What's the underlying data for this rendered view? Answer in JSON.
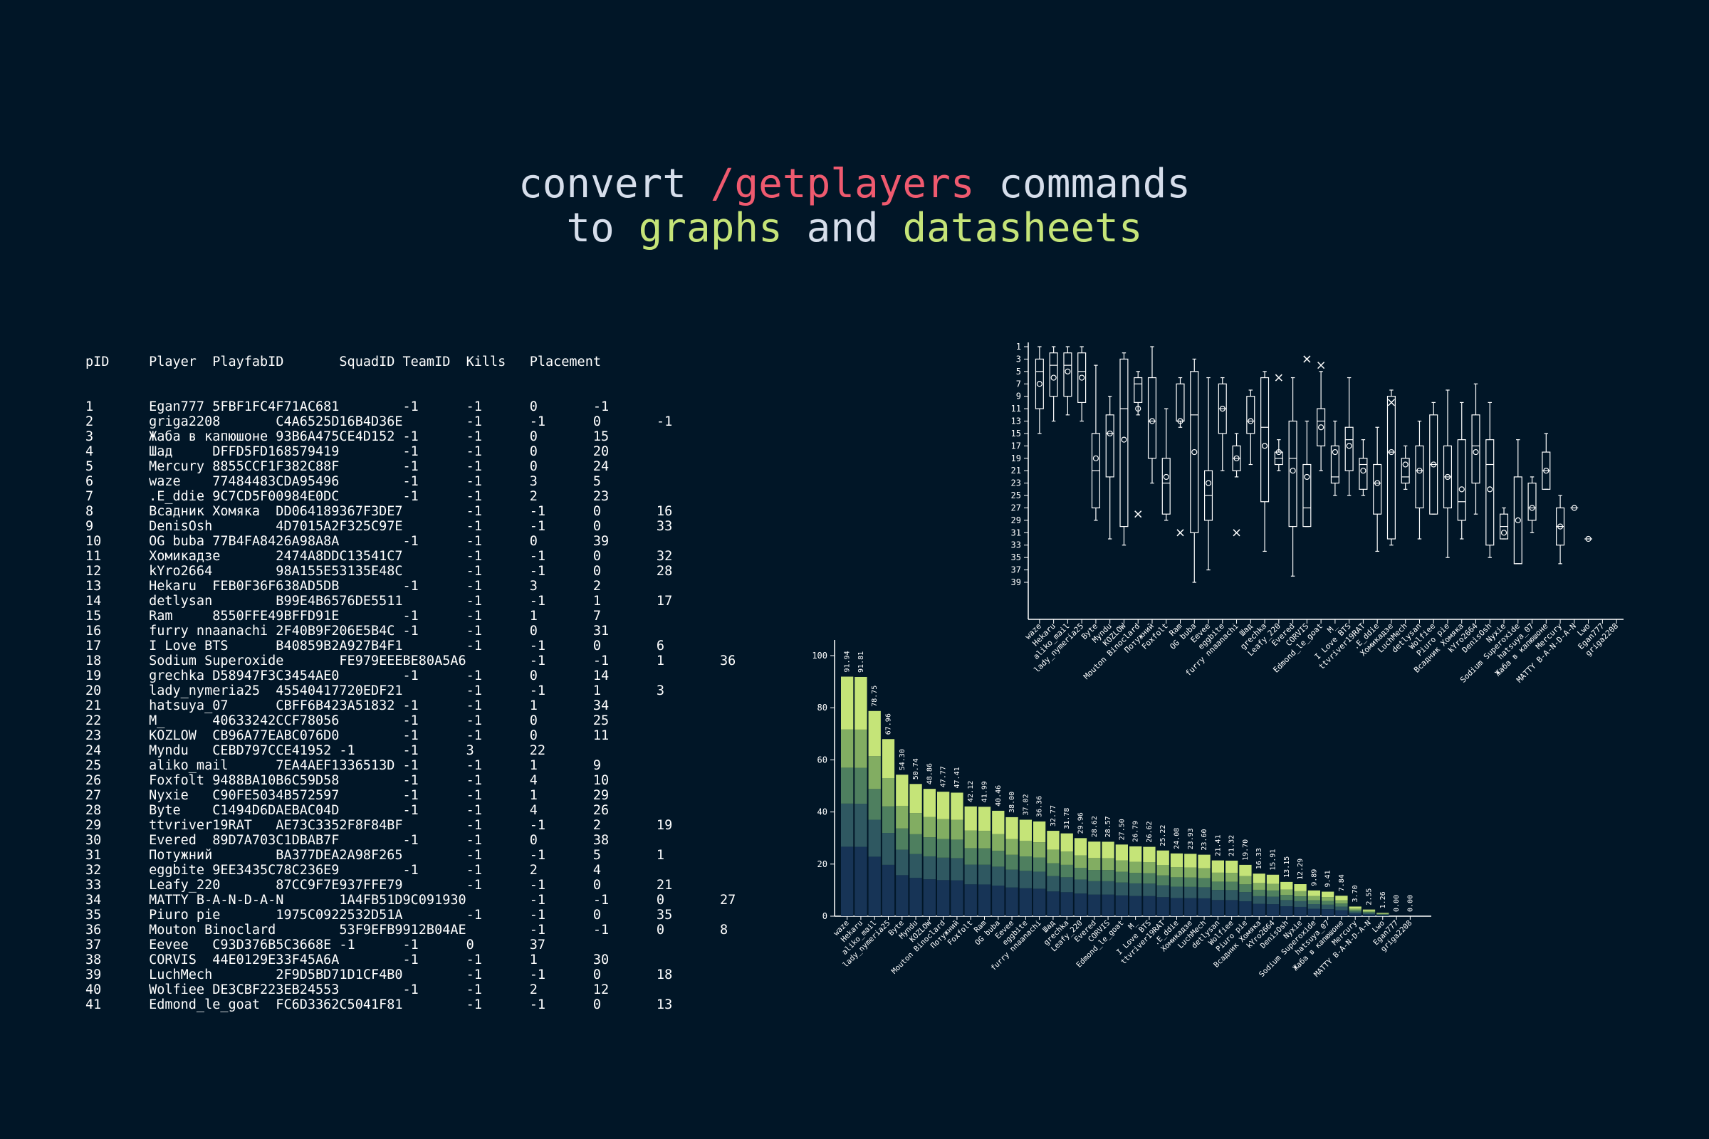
{
  "headline": {
    "line1_a": "convert ",
    "line1_b": "/getplayers",
    "line1_c": " commands",
    "line2_a": "to ",
    "line2_b": "graphs",
    "line2_c": " and ",
    "line2_d": "datasheets"
  },
  "colors": {
    "background": "#011627",
    "text": "#d6deeb",
    "command_red": "#ef5a6f",
    "green": "#c5e478",
    "box_stroke": "#ffffff",
    "bar_layers": [
      "#173456",
      "#2f5861",
      "#4e7f5f",
      "#82ad62",
      "#c5e478"
    ]
  },
  "datasheet": {
    "header": "pID     Player  PlayfabID       SquadID TeamID  Kills   Placement",
    "rows": [
      "1       Egan777 5FBF1FC4F71AC681        -1      -1      0       -1",
      "2       griga2208       C4A6525D16B4D36E        -1      -1      0       -1",
      "3       Жаба в капюшоне 93B6A475CE4D152 -1      -1      0       15",
      "4       Шад     DFFD5FD168579419        -1      -1      0       20",
      "5       Mercury 8855CCF1F382C88F        -1      -1      0       24",
      "6       waze    77484483CDA95496        -1      -1      3       5",
      "7       .E_ddie 9C7CD5F00984E0DC        -1      -1      2       23",
      "8       Всадник Хомяка  DD064189367F3DE7        -1      -1      0       16",
      "9       DenisOsh        4D7015A2F325C97E        -1      -1      0       33",
      "10      OG buba 77B4FA8426A98A8A        -1      -1      0       39",
      "11      Хомикадзе       2474A8DDC13541C7        -1      -1      0       32",
      "12      kYro2664        98A155E53135E48C        -1      -1      0       28",
      "13      Hekaru  FEB0F36F638AD5DB        -1      -1      3       2",
      "14      detlysan        B99E4B6576DE5511        -1      -1      1       17",
      "15      Ram     8550FFE49BFFD91E        -1      -1      1       7",
      "16      furry nnaanachi 2F40B9F206E5B4C -1      -1      0       31",
      "17      I Love BTS      B40859B2A927B4F1        -1      -1      0       6",
      "18      Sodium Superoxide       FE979EEEBE80A5A6        -1      -1      1       36",
      "19      grechka D58947F3C3454AE0        -1      -1      0       14",
      "20      lady_nymeria25  45540417720EDF21        -1      -1      1       3",
      "21      hatsuya_07      CBFF6B423A51832 -1      -1      1       34",
      "22      M_      40633242CCF78056        -1      -1      0       25",
      "23      KOZLOW  CB96A77EABC076D0        -1      -1      0       11",
      "24      Myndu   CEBD797CCE41952 -1      -1      3       22",
      "25      aliko_mail      7EA4AEF1336513D -1      -1      1       9",
      "26      Foxfolt 9488BA10B6C59D58        -1      -1      4       10",
      "27      Nyxie   C90FE5034B572597        -1      -1      1       29",
      "28      Byte    C1494D6DAEBAC04D        -1      -1      4       26",
      "29      ttvriver19RAT   AE73C3352F8F84BF        -1      -1      2       19",
      "30      Evered  89D7A703C1DBAB7F        -1      -1      0       38",
      "31      Потужний        BA377DEA2A98F265        -1      -1      5       1",
      "32      eggbite 9EE3435C78C236E9        -1      -1      2       4",
      "33      Leafy_220       87CC9F7E937FFE79        -1      -1      0       21",
      "34      MATTY B-A-N-D-A-N       1A4FB51D9C091930        -1      -1      0       27",
      "35      Piuro pie       1975C0922532D51A        -1      -1      0       35",
      "36      Mouton Binoclard        53F9EFB9912B04AE        -1      -1      0       8",
      "37      Eevee   C93D376B5C3668E -1      -1      0       37",
      "38      CORVIS  44E0129E33F45A6A        -1      -1      1       30",
      "39      LuchMech        2F9D5BD71D1CF4B0        -1      -1      0       18",
      "40      Wolfiee DE3CBF223EB24553        -1      -1      2       12",
      "41      Edmond_le_goat  FC6D3362C5041F81        -1      -1      0       13"
    ]
  },
  "chart_data": [
    {
      "type": "box",
      "y_axis_inverted": true,
      "y_ticks": [
        1,
        3,
        5,
        7,
        9,
        11,
        13,
        15,
        17,
        19,
        21,
        23,
        25,
        27,
        29,
        31,
        33,
        35,
        37,
        39
      ],
      "ylim": [
        1,
        40
      ],
      "grid": false,
      "categories": [
        "waze",
        "Hekaru",
        "aliko_mail",
        "lady_nymeria25",
        "Byte",
        "Myndu",
        "KOZLOW",
        "Mouton Binoclard",
        "Потужний",
        "Foxfolt",
        "Ram",
        "OG buba",
        "Eevee",
        "eggbite",
        "furry nnaanachi",
        "Шад",
        "grechka",
        "Leafy_220",
        "Evered",
        "CORVIS",
        "Edmond_le_goat",
        "M_",
        "I Love BTS",
        "ttvriver19RAT",
        ".E_ddie",
        "Хомикадзе",
        "LuchMech",
        "detlysan",
        "Wolfiee",
        "Piuro pie",
        "Всадник Хомяка",
        "kYro2664",
        "DenisOsh",
        "Nyxie",
        "Sodium Superoxide",
        "hatsuya_07",
        "Жаба в капюшоне",
        "Mercury",
        "MATTY B-A-N-D-A-N",
        "Lwo",
        "Egan777",
        "griga2208"
      ],
      "boxes": [
        {
          "min": 1,
          "q1": 3,
          "med": 5,
          "q3": 11,
          "max": 15,
          "mean": 7
        },
        {
          "min": 1,
          "q1": 2,
          "med": 4,
          "q3": 9,
          "max": 13,
          "mean": 6
        },
        {
          "min": 1,
          "q1": 2,
          "med": 4,
          "q3": 9,
          "max": 12,
          "mean": 5
        },
        {
          "min": 1,
          "q1": 2,
          "med": 5,
          "q3": 10,
          "max": 13,
          "mean": 6
        },
        {
          "min": 4,
          "q1": 15,
          "med": 21,
          "q3": 27,
          "max": 29,
          "mean": 19
        },
        {
          "min": 9,
          "q1": 12,
          "med": 15,
          "q3": 22,
          "max": 32,
          "mean": 15
        },
        {
          "min": 2,
          "q1": 3,
          "med": 11,
          "q3": 30,
          "max": 33,
          "mean": 16
        },
        {
          "min": 5,
          "q1": 6,
          "med": 7,
          "q3": 10,
          "max": 12,
          "mean": 11,
          "outliers": [
            28
          ]
        },
        {
          "min": 1,
          "q1": 6,
          "med": 13,
          "q3": 19,
          "max": 23,
          "mean": 13
        },
        {
          "min": 11,
          "q1": 19,
          "med": 23,
          "q3": 28,
          "max": 29,
          "mean": 22
        },
        {
          "min": 6,
          "q1": 7,
          "med": 13,
          "q3": 13,
          "max": 14,
          "mean": 13,
          "outliers": [
            31
          ]
        },
        {
          "min": 3,
          "q1": 5,
          "med": 12,
          "q3": 31,
          "max": 39,
          "mean": 18
        },
        {
          "min": 6,
          "q1": 21,
          "med": 25,
          "q3": 29,
          "max": 37,
          "mean": 23
        },
        {
          "min": 6,
          "q1": 7,
          "med": 11,
          "q3": 15,
          "max": 21,
          "mean": 11
        },
        {
          "min": 15,
          "q1": 17,
          "med": 19,
          "q3": 21,
          "max": 22,
          "mean": 19,
          "outliers": [
            31
          ]
        },
        {
          "min": 8,
          "q1": 9,
          "med": 13,
          "q3": 15,
          "max": 20,
          "mean": 13
        },
        {
          "min": 5,
          "q1": 6,
          "med": 14,
          "q3": 26,
          "max": 34,
          "mean": 17
        },
        {
          "min": 16,
          "q1": 18,
          "med": 19,
          "q3": 20,
          "max": 21,
          "mean": 18,
          "outliers": [
            6
          ]
        },
        {
          "min": 6,
          "q1": 13,
          "med": 19,
          "q3": 30,
          "max": 38,
          "mean": 21
        },
        {
          "min": 13,
          "q1": 20,
          "med": 27,
          "q3": 30,
          "max": 30,
          "mean": 22,
          "outliers": [
            3
          ]
        },
        {
          "min": 5,
          "q1": 11,
          "med": 13,
          "q3": 17,
          "max": 21,
          "mean": 14,
          "outliers": [
            4
          ]
        },
        {
          "min": 13,
          "q1": 17,
          "med": 22,
          "q3": 23,
          "max": 25,
          "mean": 18
        },
        {
          "min": 6,
          "q1": 14,
          "med": 16,
          "q3": 21,
          "max": 25,
          "mean": 17
        },
        {
          "min": 16,
          "q1": 19,
          "med": 20,
          "q3": 24,
          "max": 25,
          "mean": 21
        },
        {
          "min": 14,
          "q1": 20,
          "med": 23,
          "q3": 28,
          "max": 34,
          "mean": 23
        },
        {
          "min": 8,
          "q1": 9,
          "med": 18,
          "q3": 32,
          "max": 33,
          "mean": 18,
          "outliers": [
            10
          ]
        },
        {
          "min": 17,
          "q1": 19,
          "med": 22,
          "q3": 23,
          "max": 24,
          "mean": 20
        },
        {
          "min": 13,
          "q1": 17,
          "med": 21,
          "q3": 27,
          "max": 32,
          "mean": 21
        },
        {
          "min": 10,
          "q1": 12,
          "med": 20,
          "q3": 28,
          "max": 28,
          "mean": 20
        },
        {
          "min": 8,
          "q1": 17,
          "med": 22,
          "q3": 27,
          "max": 35,
          "mean": 22
        },
        {
          "min": 10,
          "q1": 16,
          "med": 26,
          "q3": 29,
          "max": 32,
          "mean": 24
        },
        {
          "min": 7,
          "q1": 12,
          "med": 17,
          "q3": 23,
          "max": 28,
          "mean": 18
        },
        {
          "min": 10,
          "q1": 16,
          "med": 20,
          "q3": 33,
          "max": 35,
          "mean": 24
        },
        {
          "min": 27,
          "q1": 28,
          "med": 30,
          "q3": 32,
          "max": 32,
          "mean": 31
        },
        {
          "min": 16,
          "q1": 22,
          "med": 36,
          "q3": 36,
          "max": 36,
          "mean": 29
        },
        {
          "min": 22,
          "q1": 23,
          "med": 27,
          "q3": 29,
          "max": 31,
          "mean": 27
        },
        {
          "min": 15,
          "q1": 18,
          "med": 21,
          "q3": 24,
          "max": 24,
          "mean": 21
        },
        {
          "min": 25,
          "q1": 27,
          "med": 30,
          "q3": 33,
          "max": 36,
          "mean": 30
        },
        {
          "med": 27,
          "mean": 27
        },
        {
          "med": 32,
          "mean": 32
        },
        {},
        {}
      ]
    },
    {
      "type": "stacked_bar",
      "ylim": [
        0,
        100
      ],
      "y_ticks": [
        0,
        20,
        40,
        60,
        80,
        100
      ],
      "grid": false,
      "categories": [
        "waze",
        "Hekaru",
        "aliko_mail",
        "lady_nymeria25",
        "Byte",
        "Myndu",
        "KOZLOW",
        "Mouton Binoclard",
        "Потужний",
        "Foxfolt",
        "Ram",
        "OG buba",
        "Eevee",
        "eggbite",
        "furry nnaanachi",
        "Шад",
        "grechka",
        "Leafy_220",
        "Evered",
        "CORVIS",
        "Edmond_le_goat",
        "M_",
        "I Love BTS",
        "ttvriver19RAT",
        ".E_ddie",
        "Хомикадзе",
        "LuchMech",
        "detlysan",
        "Wolfiee",
        "Piuro pie",
        "Всадник Хомяка",
        "kYro2664",
        "DenisOsh",
        "Nyxie",
        "Sodium Superoxide",
        "hatsuya_07",
        "Жаба в капюшоне",
        "Mercury",
        "MATTY B-A-N-D-A-N",
        "Lwo",
        "Egan777",
        "griga2208"
      ],
      "totals": [
        91.94,
        91.81,
        78.75,
        67.96,
        54.3,
        50.74,
        48.86,
        47.77,
        47.41,
        42.12,
        41.99,
        40.46,
        38.0,
        37.02,
        36.36,
        32.77,
        31.78,
        29.96,
        28.62,
        28.57,
        27.5,
        26.79,
        26.62,
        25.22,
        24.08,
        23.93,
        23.6,
        21.41,
        21.32,
        19.7,
        16.33,
        15.91,
        13.15,
        12.29,
        9.89,
        9.41,
        7.84,
        3.7,
        2.55,
        1.26,
        0.0,
        0.0
      ],
      "totals_labels": [
        "91.94",
        "91.81",
        "78.75",
        "67.96",
        "54.30",
        "50.74",
        "48.86",
        "47.77",
        "47.41",
        "42.12",
        "41.99",
        "40.46",
        "38.00",
        "37.02",
        "36.36",
        "32.77",
        "31.78",
        "29.96",
        "28.62",
        "28.57",
        "27.50",
        "26.79",
        "26.62",
        "25.22",
        "24.08",
        "23.93",
        "23.60",
        "21.41",
        "21.32",
        "19.70",
        "16.33",
        "15.91",
        "13.15",
        "12.29",
        "9.89",
        "9.41",
        "7.84",
        "3.70",
        "2.55",
        "1.26",
        "0.00",
        "0.00"
      ],
      "layer_shares": [
        0.29,
        0.18,
        0.15,
        0.16,
        0.22
      ]
    }
  ]
}
